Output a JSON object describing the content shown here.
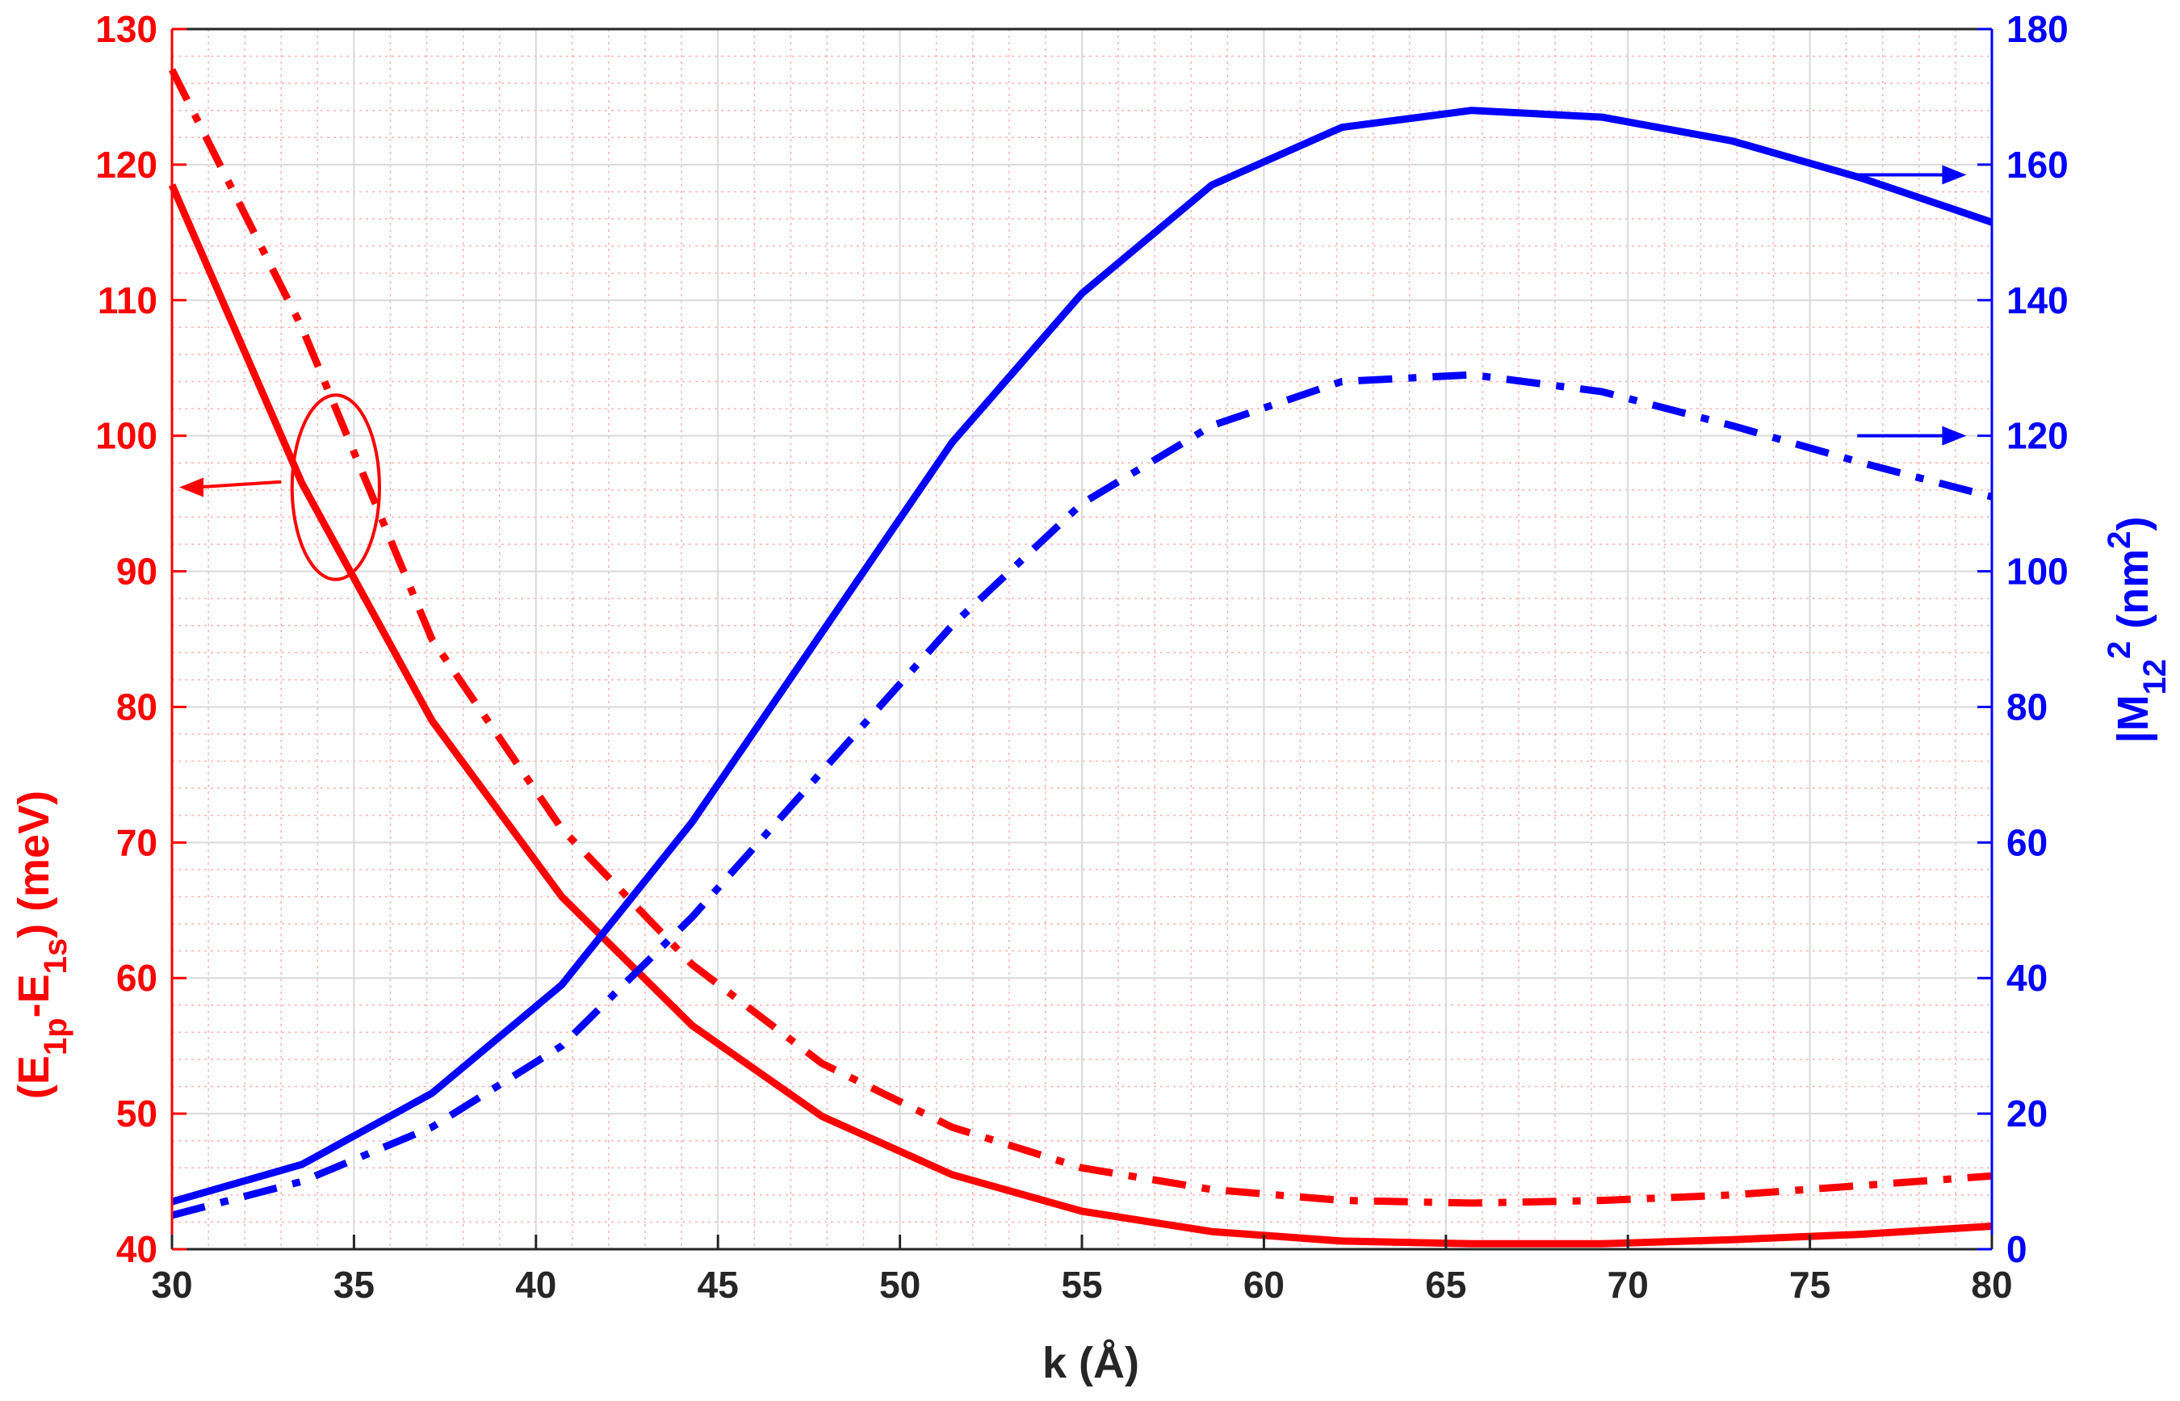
{
  "chart_data": {
    "type": "line",
    "title": "",
    "xlabel": "k (Å)",
    "ylabel_left": {
      "base": "(E",
      "sub1": "1p",
      "mid": "-E",
      "sub2": "1s",
      "end": ") (meV)"
    },
    "ylabel_right": {
      "base": "|M",
      "sub": "12",
      "sup1": "2",
      "mid": " (nm",
      "sup2": "2",
      "end": ")"
    },
    "xlim": [
      30,
      80
    ],
    "ylim_left": [
      40,
      130
    ],
    "ylim_right": [
      0,
      180
    ],
    "xticks": [
      30,
      35,
      40,
      45,
      50,
      55,
      60,
      65,
      70,
      75,
      80
    ],
    "yticks_left": [
      40,
      50,
      60,
      70,
      80,
      90,
      100,
      110,
      120,
      130
    ],
    "yticks_right": [
      0,
      20,
      40,
      60,
      80,
      100,
      120,
      140,
      160,
      180
    ],
    "grid": true,
    "minor_grid": true,
    "colors": {
      "left_axis": "#ff0000",
      "right_axis": "#0000ff",
      "grid": "#d9d9d9",
      "minor_grid": "#ffb3b3"
    },
    "x": [
      30,
      33.57,
      37.14,
      40.71,
      44.29,
      47.86,
      51.43,
      55,
      58.57,
      62.14,
      65.71,
      69.29,
      72.86,
      76.43,
      80
    ],
    "series": [
      {
        "axis": "left",
        "style": "solid",
        "color": "#ff0000",
        "values": [
          118.5,
          96.5,
          79.0,
          66.0,
          56.5,
          49.8,
          45.5,
          42.8,
          41.3,
          40.6,
          40.4,
          40.4,
          40.7,
          41.1,
          41.7
        ]
      },
      {
        "axis": "left",
        "style": "dashdot",
        "color": "#ff0000",
        "values": [
          127.0,
          108.0,
          85.0,
          71.0,
          61.0,
          53.7,
          49.0,
          46.0,
          44.4,
          43.6,
          43.4,
          43.6,
          44.0,
          44.7,
          45.4
        ]
      },
      {
        "axis": "right",
        "style": "solid",
        "color": "#0000ff",
        "values": [
          7,
          12.5,
          23,
          39,
          63,
          91,
          119,
          141,
          157,
          165.5,
          168,
          167,
          163.5,
          158,
          151.5
        ]
      },
      {
        "axis": "right",
        "style": "dashdot",
        "color": "#0000ff",
        "values": [
          5,
          10,
          18,
          30,
          49,
          70.5,
          92,
          110,
          121.5,
          128,
          129,
          126.5,
          121.5,
          116,
          111
        ]
      }
    ],
    "annotations": [
      {
        "type": "ellipse",
        "color": "#ff0000",
        "x": 34.5,
        "y_left": 96.2,
        "rx_data": 1.2,
        "ry_data": 6.8
      },
      {
        "type": "arrow",
        "color": "#ff0000",
        "axis": "left",
        "from": [
          33,
          96.6
        ],
        "to": [
          30.2,
          96.2
        ]
      },
      {
        "type": "arrow",
        "color": "#0000ff",
        "axis": "right",
        "from": [
          76,
          158.5
        ],
        "to": [
          79.3,
          158.5
        ]
      },
      {
        "type": "arrow",
        "color": "#0000ff",
        "axis": "right",
        "from": [
          76.3,
          120
        ],
        "to": [
          79.3,
          120
        ]
      }
    ]
  }
}
